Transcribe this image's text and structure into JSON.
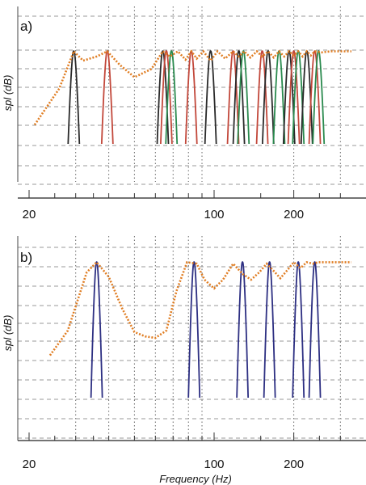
{
  "chart_data": [
    {
      "panel": "a)",
      "type": "line",
      "ylabel": "spl (dB)",
      "xlabel": "",
      "x_scale": "log",
      "xlim": [
        17,
        330
      ],
      "ylim": [
        0,
        100
      ],
      "x_ticks": [
        20,
        100,
        200
      ],
      "grid": true,
      "envelope": {
        "style": "dotted",
        "x": [
          21,
          26,
          29.5,
          32,
          36,
          39.5,
          44,
          50,
          58,
          64,
          68,
          73,
          78,
          82,
          86,
          91,
          97,
          103,
          110,
          118,
          124,
          130,
          137,
          145,
          152,
          160,
          168,
          176,
          184,
          192,
          200,
          208,
          216,
          224,
          232,
          240,
          255,
          275,
          300,
          330
        ],
        "y": [
          20,
          55,
          91,
          82,
          86,
          91,
          78,
          66,
          74,
          91,
          86,
          91,
          83,
          91,
          84,
          91,
          82,
          91,
          84,
          91,
          86,
          91,
          85,
          91,
          86,
          91,
          85,
          91,
          86,
          91,
          87,
          91,
          86,
          91,
          87,
          91,
          90,
          91,
          91,
          91
        ]
      },
      "band_peaks": [
        {
          "color": "#2a2a2a",
          "center": 29.5,
          "peak": 91
        },
        {
          "color": "#c2473a",
          "center": 39.5,
          "peak": 91
        },
        {
          "color": "#2a2a2a",
          "center": 64,
          "peak": 91
        },
        {
          "color": "#c2473a",
          "center": 66,
          "peak": 91
        },
        {
          "color": "#2a8a4e",
          "center": 69,
          "peak": 91
        },
        {
          "color": "#c2473a",
          "center": 82,
          "peak": 91
        },
        {
          "color": "#2a2a2a",
          "center": 97,
          "peak": 91
        },
        {
          "color": "#c2473a",
          "center": 118,
          "peak": 91
        },
        {
          "color": "#2a2a2a",
          "center": 124,
          "peak": 91
        },
        {
          "color": "#2a8a4e",
          "center": 129,
          "peak": 91
        },
        {
          "color": "#c2473a",
          "center": 152,
          "peak": 91
        },
        {
          "color": "#2a2a2a",
          "center": 160,
          "peak": 91
        },
        {
          "color": "#2a8a4e",
          "center": 176,
          "peak": 91
        },
        {
          "color": "#2a2a2a",
          "center": 192,
          "peak": 91
        },
        {
          "color": "#c2473a",
          "center": 200,
          "peak": 91
        },
        {
          "color": "#2a8a4e",
          "center": 208,
          "peak": 91
        },
        {
          "color": "#2a2a2a",
          "center": 224,
          "peak": 91
        },
        {
          "color": "#c2473a",
          "center": 240,
          "peak": 91
        },
        {
          "color": "#2a8a4e",
          "center": 248,
          "peak": 91
        }
      ]
    },
    {
      "panel": "b)",
      "type": "line",
      "ylabel": "spl (dB)",
      "xlabel": "Frequency (Hz)",
      "x_scale": "log",
      "xlim": [
        17,
        330
      ],
      "ylim": [
        0,
        100
      ],
      "x_ticks": [
        20,
        100,
        200
      ],
      "grid": true,
      "envelope": {
        "style": "dotted",
        "x": [
          24,
          28,
          33,
          36,
          40,
          45,
          50,
          55,
          60,
          66,
          72,
          79,
          86,
          92,
          100,
          108,
          118,
          128,
          138,
          148,
          158,
          168,
          178,
          188,
          200,
          212,
          224,
          236,
          248,
          262,
          280,
          300,
          330
        ],
        "y": [
          28,
          45,
          85,
          92,
          82,
          60,
          44,
          41,
          40,
          45,
          72,
          92,
          91,
          80,
          74,
          80,
          91,
          84,
          80,
          85,
          91,
          86,
          81,
          86,
          92,
          88,
          92,
          91,
          92,
          92,
          92,
          92,
          92
        ]
      },
      "band_peaks": [
        {
          "color": "#2d2f82",
          "center": 36,
          "peak": 92
        },
        {
          "color": "#2d2f82",
          "center": 84,
          "peak": 92
        },
        {
          "color": "#2d2f82",
          "center": 128,
          "peak": 92
        },
        {
          "color": "#2d2f82",
          "center": 162,
          "peak": 92
        },
        {
          "color": "#2d2f82",
          "center": 208,
          "peak": 92
        },
        {
          "color": "#2d2f82",
          "center": 240,
          "peak": 92
        }
      ]
    }
  ]
}
